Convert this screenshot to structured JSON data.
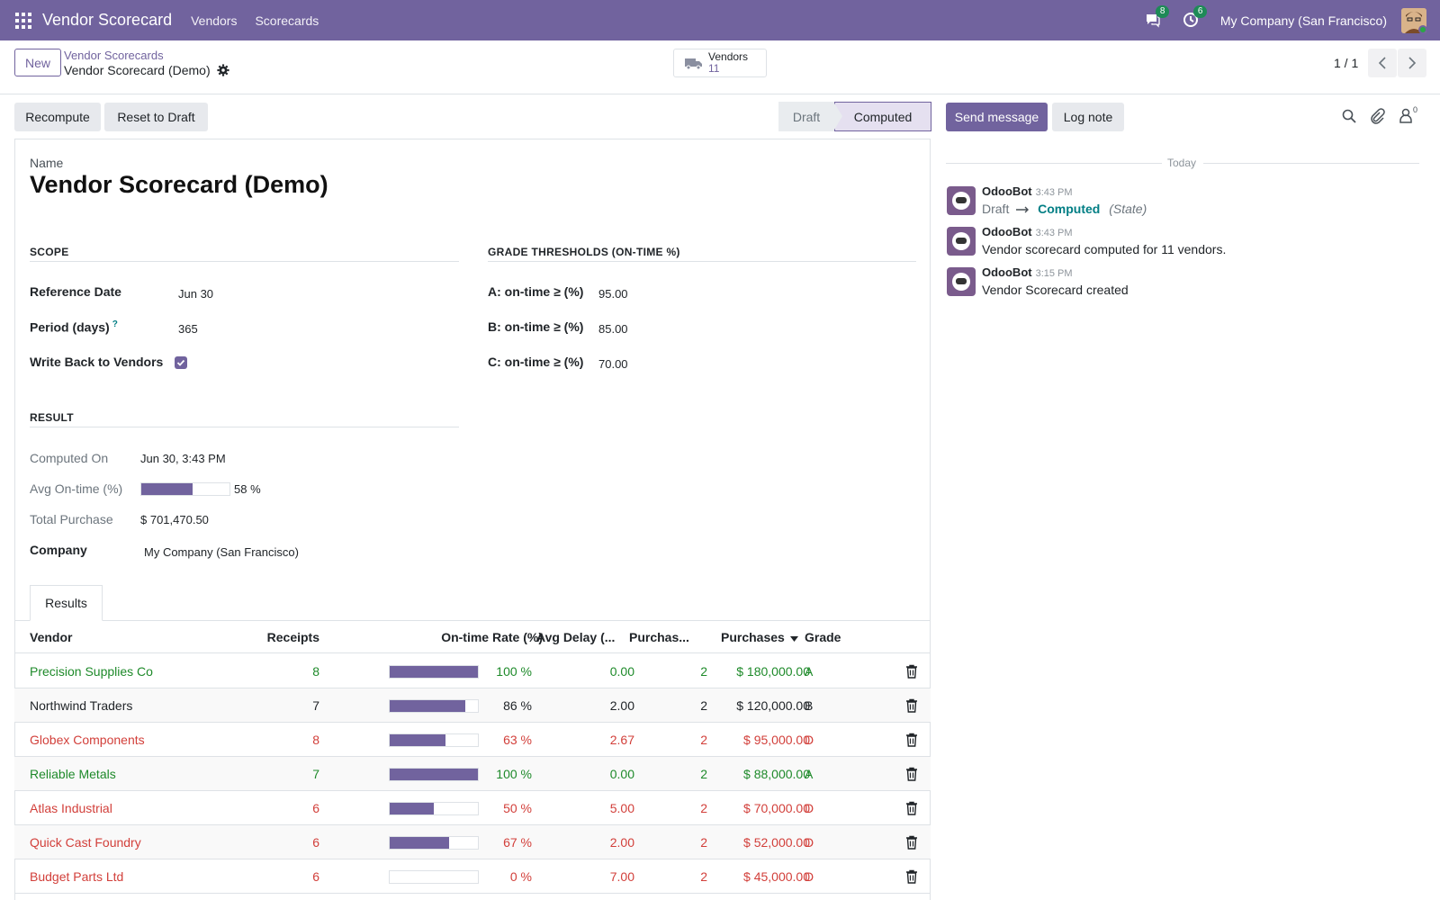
{
  "navbar": {
    "app_name": "Vendor Scorecard",
    "menus": [
      "Vendors",
      "Scorecards"
    ],
    "messages_count": "8",
    "activities_count": "6",
    "company": "My Company (San Francisco)"
  },
  "control_panel": {
    "new_label": "New",
    "breadcrumb_parent": "Vendor Scorecards",
    "breadcrumb_current": "Vendor Scorecard (Demo)",
    "smart_button": {
      "label": "Vendors",
      "count": "11"
    },
    "pager": "1 / 1"
  },
  "actions": {
    "recompute": "Recompute",
    "reset_to_draft": "Reset to Draft"
  },
  "statusbar": {
    "stages": [
      "Draft",
      "Computed"
    ],
    "current": "Computed"
  },
  "chatter_actions": {
    "send_message": "Send message",
    "log_note": "Log note",
    "followers_count": "0"
  },
  "form": {
    "name_label": "Name",
    "name": "Vendor Scorecard (Demo)",
    "scope": {
      "title": "SCOPE",
      "reference_date_label": "Reference Date",
      "reference_date": "Jun 30",
      "period_label": "Period (days)",
      "period_help": "?",
      "period": "365",
      "write_back_label": "Write Back to Vendors",
      "write_back": true
    },
    "thresholds": {
      "title": "GRADE THRESHOLDS (ON-TIME %)",
      "a_label": "A: on-time ≥ (%)",
      "a_value": "95.00",
      "b_label": "B: on-time ≥ (%)",
      "b_value": "85.00",
      "c_label": "C: on-time ≥ (%)",
      "c_value": "70.00"
    },
    "result": {
      "title": "RESULT",
      "computed_on_label": "Computed On",
      "computed_on": "Jun 30, 3:43 PM",
      "avg_ontime_label": "Avg On-time (%)",
      "avg_ontime": 58,
      "avg_ontime_text": "58 %",
      "total_purchase_label": "Total Purchase",
      "total_purchase": "$ 701,470.50",
      "company_label": "Company",
      "company": "My Company (San Francisco)"
    }
  },
  "tabs": [
    "Results"
  ],
  "table": {
    "headers": [
      "Vendor",
      "Receipts",
      "On-time Rate (%)",
      "Avg Delay (...",
      "Purchas...",
      "Purchases",
      "Grade"
    ],
    "rows": [
      {
        "vendor": "Precision Supplies Co",
        "receipts": "8",
        "rate": 100,
        "rate_text": "100 %",
        "delay": "0.00",
        "purch_count": "2",
        "purchases": "$ 180,000.00",
        "grade": "A",
        "color": "green"
      },
      {
        "vendor": "Northwind Traders",
        "receipts": "7",
        "rate": 86,
        "rate_text": "86 %",
        "delay": "2.00",
        "purch_count": "2",
        "purchases": "$ 120,000.00",
        "grade": "B",
        "color": "dark"
      },
      {
        "vendor": "Globex Components",
        "receipts": "8",
        "rate": 63,
        "rate_text": "63 %",
        "delay": "2.67",
        "purch_count": "2",
        "purchases": "$ 95,000.00",
        "grade": "D",
        "color": "red"
      },
      {
        "vendor": "Reliable Metals",
        "receipts": "7",
        "rate": 100,
        "rate_text": "100 %",
        "delay": "0.00",
        "purch_count": "2",
        "purchases": "$ 88,000.00",
        "grade": "A",
        "color": "green"
      },
      {
        "vendor": "Atlas Industrial",
        "receipts": "6",
        "rate": 50,
        "rate_text": "50 %",
        "delay": "5.00",
        "purch_count": "2",
        "purchases": "$ 70,000.00",
        "grade": "D",
        "color": "red"
      },
      {
        "vendor": "Quick Cast Foundry",
        "receipts": "6",
        "rate": 67,
        "rate_text": "67 %",
        "delay": "2.00",
        "purch_count": "2",
        "purchases": "$ 52,000.00",
        "grade": "D",
        "color": "red"
      },
      {
        "vendor": "Budget Parts Ltd",
        "receipts": "6",
        "rate": 0,
        "rate_text": "0 %",
        "delay": "7.00",
        "purch_count": "2",
        "purchases": "$ 45,000.00",
        "grade": "D",
        "color": "red"
      }
    ]
  },
  "chatter": {
    "today": "Today",
    "messages": [
      {
        "author": "OdooBot",
        "time": "3:43 PM",
        "from_state": "Draft",
        "to_state": "Computed",
        "field": "(State)"
      },
      {
        "author": "OdooBot",
        "time": "3:43 PM",
        "body": "Vendor scorecard computed for 11 vendors."
      },
      {
        "author": "OdooBot",
        "time": "3:15 PM",
        "body": "Vendor Scorecard created"
      }
    ]
  },
  "colors": {
    "brand": "#71639e",
    "success": "#1e8a2a",
    "danger": "#d23f3a",
    "link_teal": "#017e84"
  }
}
